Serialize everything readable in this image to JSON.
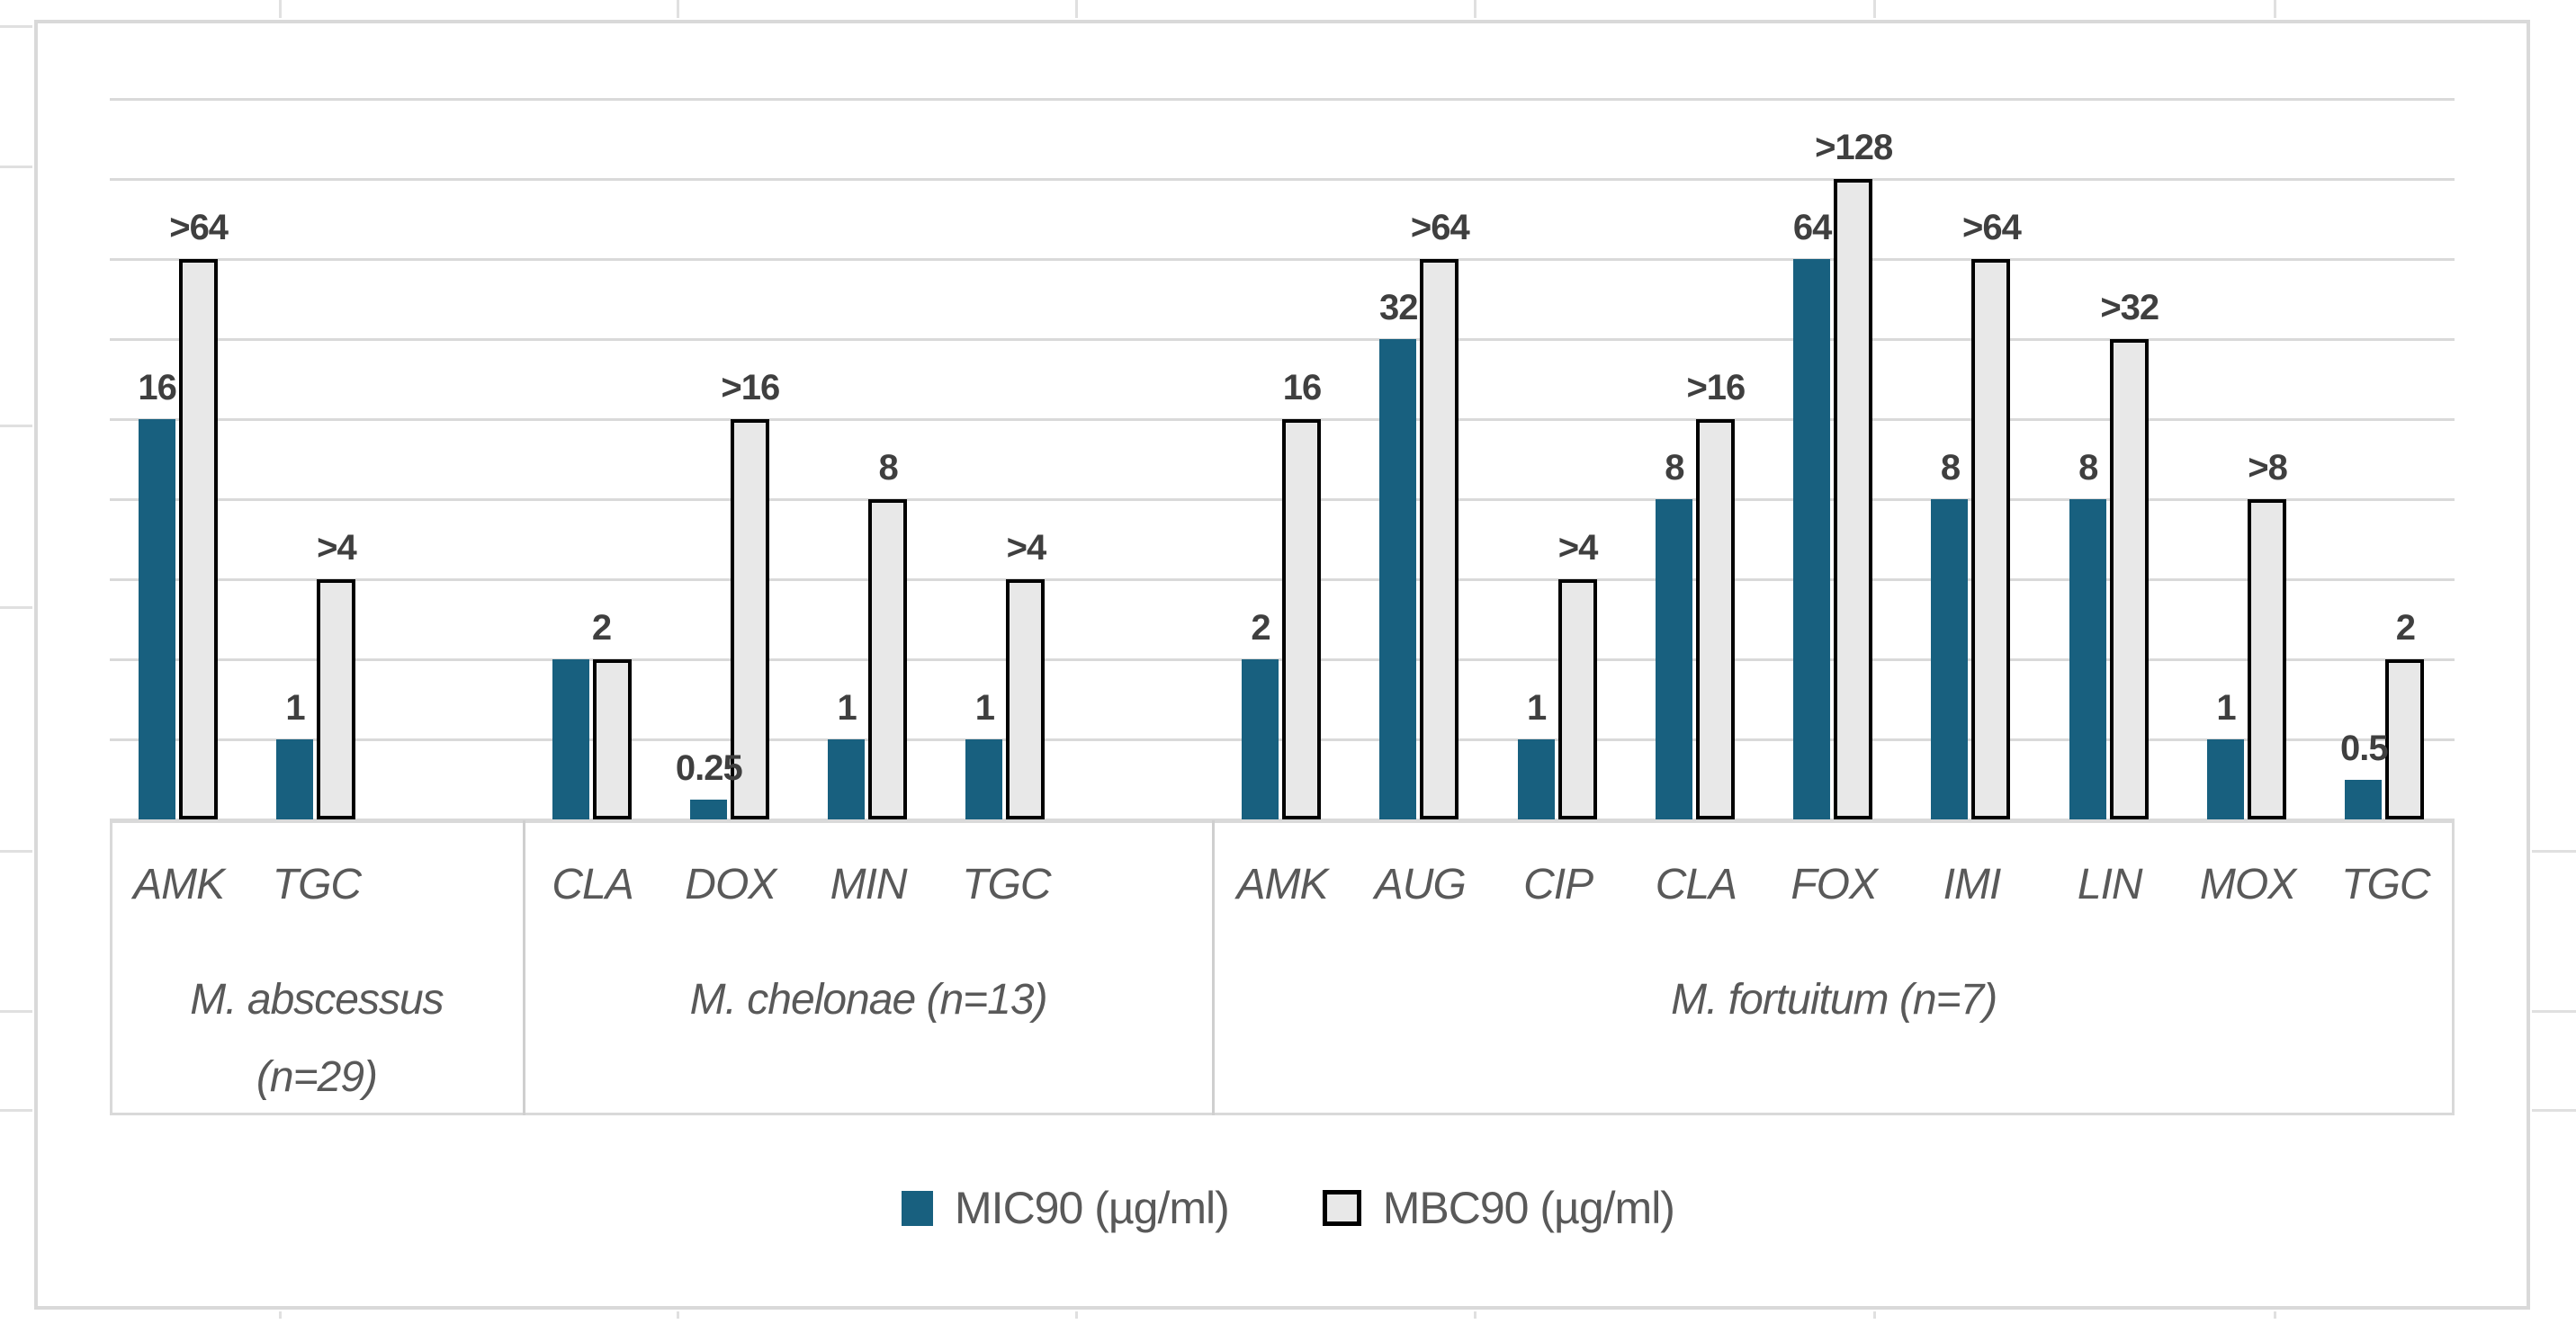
{
  "chart_data": {
    "type": "bar",
    "title": "",
    "y_axis": {
      "scale": "log2",
      "gridline_values": [
        256,
        128,
        64,
        32,
        16,
        8,
        4,
        2,
        1,
        0.5
      ],
      "note": "no numeric tick labels shown; one gridline per doubling"
    },
    "series": [
      {
        "name": "MIC90 (µg/ml)",
        "swatch": "blue-filled-bar"
      },
      {
        "name": "MBC90 (µg/ml)",
        "swatch": "white-bar-black-outline"
      }
    ],
    "groups": [
      {
        "label": "M. abscessus (n=29)",
        "label_lines": [
          "M. abscessus",
          "(n=29)"
        ],
        "items": [
          {
            "antibiotic": "AMK",
            "mic": 16,
            "mic_label": "16",
            "mbc": 64,
            "mbc_label": ">64"
          },
          {
            "antibiotic": "TGC",
            "mic": 1,
            "mic_label": "1",
            "mbc": 4,
            "mbc_label": ">4"
          }
        ]
      },
      {
        "label": "M. chelonae (n=13)",
        "label_lines": [
          "M. chelonae (n=13)"
        ],
        "items": [
          {
            "antibiotic": "CLA",
            "mic": 2,
            "mic_label": "",
            "mbc": 2,
            "mbc_label": "2",
            "merged_label": true
          },
          {
            "antibiotic": "DOX",
            "mic": 0.25,
            "mic_label": "0.25",
            "mbc": 16,
            "mbc_label": ">16"
          },
          {
            "antibiotic": "MIN",
            "mic": 1,
            "mic_label": "1",
            "mbc": 8,
            "mbc_label": "8"
          },
          {
            "antibiotic": "TGC",
            "mic": 1,
            "mic_label": "1",
            "mbc": 4,
            "mbc_label": ">4"
          }
        ]
      },
      {
        "label": "M. fortuitum (n=7)",
        "label_lines": [
          "M. fortuitum (n=7)"
        ],
        "items": [
          {
            "antibiotic": "AMK",
            "mic": 2,
            "mic_label": "2",
            "mbc": 16,
            "mbc_label": "16"
          },
          {
            "antibiotic": "AUG",
            "mic": 32,
            "mic_label": "32",
            "mbc": 64,
            "mbc_label": ">64"
          },
          {
            "antibiotic": "CIP",
            "mic": 1,
            "mic_label": "1",
            "mbc": 4,
            "mbc_label": ">4"
          },
          {
            "antibiotic": "CLA",
            "mic": 8,
            "mic_label": "8",
            "mbc": 16,
            "mbc_label": ">16"
          },
          {
            "antibiotic": "FOX",
            "mic": 64,
            "mic_label": "64",
            "mbc": 128,
            "mbc_label": ">128"
          },
          {
            "antibiotic": "IMI",
            "mic": 8,
            "mic_label": "8",
            "mbc": 64,
            "mbc_label": ">64"
          },
          {
            "antibiotic": "LIN",
            "mic": 8,
            "mic_label": "8",
            "mbc": 32,
            "mbc_label": ">32"
          },
          {
            "antibiotic": "MOX",
            "mic": 1,
            "mic_label": "1",
            "mbc": 8,
            "mbc_label": ">8"
          },
          {
            "antibiotic": "TGC",
            "mic": 0.5,
            "mic_label": "0.5",
            "mbc": 2,
            "mbc_label": "2"
          }
        ]
      }
    ],
    "legend": [
      {
        "label": "MIC90 (µg/ml)"
      },
      {
        "label": "MBC90 (µg/ml)"
      }
    ]
  },
  "colors": {
    "mic_bar": "#18607F",
    "mbc_bar_fill": "#e8e8e8",
    "mbc_bar_border": "#000000",
    "gridline": "#d9d9d9",
    "chart_border": "#d9d9d9",
    "group_divider": "#cfcfcf",
    "category_text": "#595959",
    "data_label_text": "#3f3f3f"
  }
}
